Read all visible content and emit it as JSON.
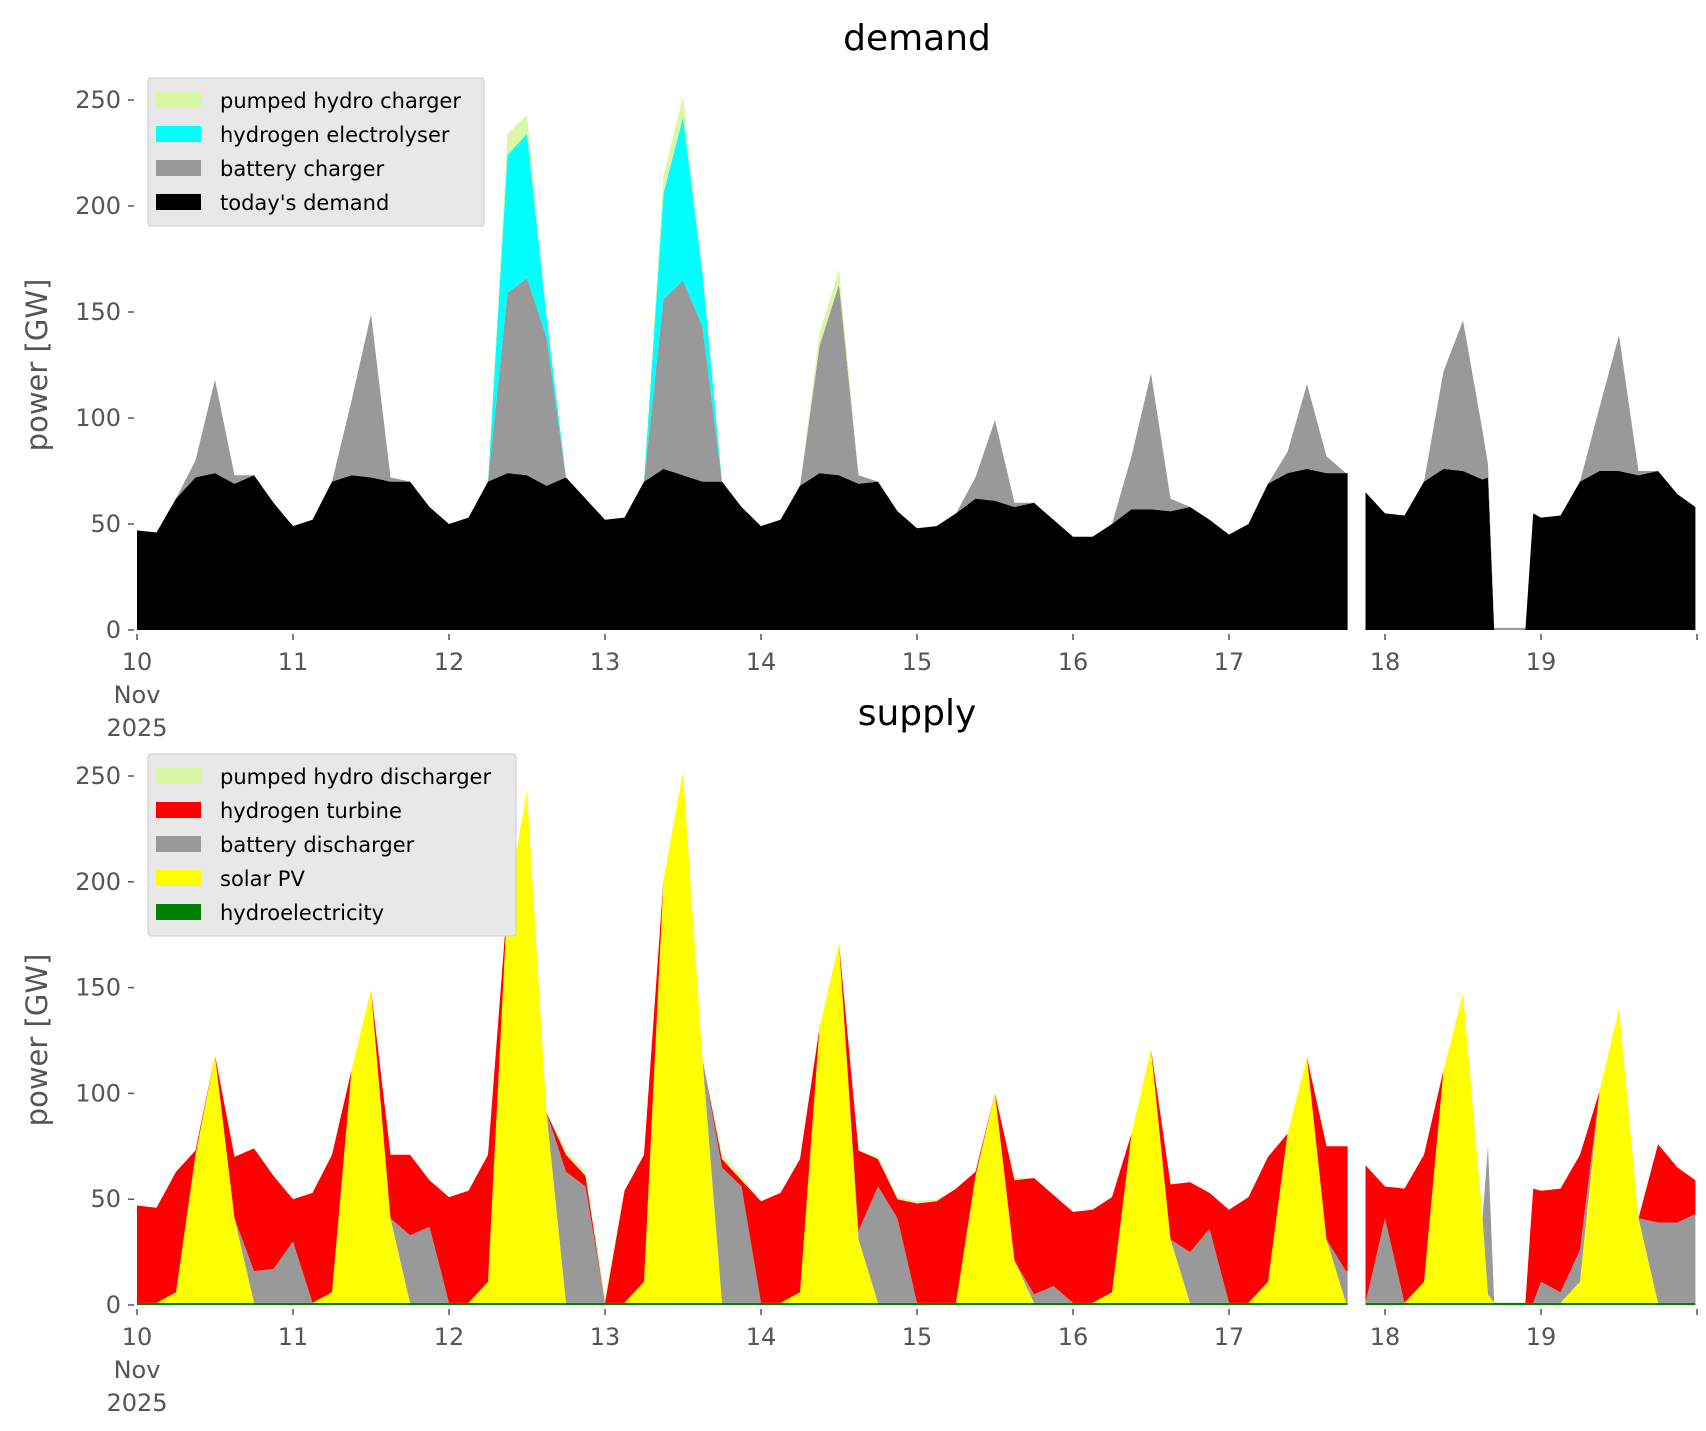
{
  "chart_data": [
    {
      "type": "area",
      "stacked": true,
      "title": "demand",
      "ylabel": "power [GW]",
      "xlabel": "",
      "ylim": [
        0,
        260
      ],
      "xlim": [
        10,
        20
      ],
      "yticks": [
        0,
        50,
        100,
        150,
        200,
        250
      ],
      "xticks": [
        {
          "value": 10,
          "label": [
            "10",
            "Nov",
            "2025"
          ]
        },
        {
          "value": 11,
          "label": [
            "11"
          ]
        },
        {
          "value": 12,
          "label": [
            "12"
          ]
        },
        {
          "value": 13,
          "label": [
            "13"
          ]
        },
        {
          "value": 14,
          "label": [
            "14"
          ]
        },
        {
          "value": 15,
          "label": [
            "15"
          ]
        },
        {
          "value": 16,
          "label": [
            "16"
          ]
        },
        {
          "value": 17,
          "label": [
            "17"
          ]
        },
        {
          "value": 18,
          "label": [
            "18"
          ]
        },
        {
          "value": 19,
          "label": [
            "19"
          ]
        }
      ],
      "grid": false,
      "legend_position": "top-left",
      "legend": [
        {
          "name": "pumped hydro charger",
          "color": "#daf7a6"
        },
        {
          "name": "hydrogen electrolyser",
          "color": "#00ffff"
        },
        {
          "name": "battery charger",
          "color": "#999999"
        },
        {
          "name": "today's demand",
          "color": "#000000"
        }
      ],
      "x_unit": "day of Nov 2025 (3-hourly samples)",
      "x": [
        10.0,
        10.125,
        10.25,
        10.375,
        10.5,
        10.625,
        10.75,
        10.875,
        11.0,
        11.125,
        11.25,
        11.375,
        11.5,
        11.625,
        11.75,
        11.875,
        12.0,
        12.125,
        12.25,
        12.375,
        12.5,
        12.625,
        12.75,
        12.875,
        13.0,
        13.125,
        13.25,
        13.375,
        13.5,
        13.625,
        13.75,
        13.875,
        14.0,
        14.125,
        14.25,
        14.375,
        14.5,
        14.625,
        14.75,
        14.875,
        15.0,
        15.125,
        15.25,
        15.375,
        15.5,
        15.625,
        15.75,
        15.875,
        16.0,
        16.125,
        16.25,
        16.375,
        16.5,
        16.625,
        16.75,
        16.875,
        17.0,
        17.125,
        17.25,
        17.375,
        17.5,
        17.625,
        17.75,
        17.76,
        17.85,
        17.875,
        18.0,
        18.125,
        18.25,
        18.375,
        18.5,
        18.625,
        18.66,
        18.7,
        18.9,
        18.95,
        19.0,
        19.125,
        19.25,
        19.375,
        19.5,
        19.625,
        19.75,
        19.875,
        19.99
      ],
      "series": [
        {
          "name": "today's demand",
          "color": "#000000",
          "values": [
            47,
            46,
            62,
            72,
            74,
            69,
            73,
            60,
            49,
            52,
            70,
            73,
            72,
            70,
            70,
            58,
            50,
            53,
            70,
            74,
            73,
            68,
            72,
            62,
            52,
            53,
            70,
            76,
            73,
            70,
            70,
            58,
            49,
            52,
            68,
            74,
            73,
            69,
            70,
            56,
            48,
            49,
            55,
            62,
            61,
            58,
            60,
            52,
            44,
            44,
            50,
            57,
            57,
            56,
            58,
            52,
            45,
            50,
            69,
            74,
            76,
            74,
            74,
            74,
            null,
            65,
            55,
            54,
            70,
            76,
            75,
            71,
            72,
            0,
            0,
            55,
            53,
            54,
            70,
            75,
            75,
            73,
            75,
            64,
            58
          ]
        },
        {
          "name": "battery charger",
          "color": "#999999",
          "values": [
            0,
            0,
            0,
            8,
            44,
            4,
            0,
            0,
            0,
            0,
            0,
            35,
            77,
            2,
            0,
            0,
            0,
            0,
            0,
            85,
            93,
            70,
            0,
            0,
            0,
            0,
            0,
            80,
            92,
            73,
            0,
            0,
            0,
            0,
            0,
            60,
            90,
            4,
            0,
            0,
            0,
            0,
            0,
            10,
            38,
            2,
            0,
            0,
            0,
            0,
            0,
            25,
            64,
            6,
            0,
            0,
            0,
            0,
            0,
            10,
            40,
            8,
            0,
            0,
            null,
            0,
            0,
            0,
            0,
            46,
            71,
            23,
            6,
            1,
            1,
            0,
            0,
            0,
            0,
            30,
            64,
            2,
            0,
            0,
            0
          ]
        },
        {
          "name": "hydrogen electrolyser",
          "color": "#00ffff",
          "values": [
            0,
            0,
            0,
            0,
            0,
            0,
            0,
            0,
            0,
            0,
            0,
            0,
            0,
            0,
            0,
            0,
            0,
            0,
            0,
            65,
            68,
            10,
            0,
            0,
            0,
            0,
            0,
            50,
            77,
            25,
            0,
            0,
            0,
            0,
            0,
            0,
            0,
            0,
            0,
            0,
            0,
            0,
            0,
            0,
            0,
            0,
            0,
            0,
            0,
            0,
            0,
            0,
            0,
            0,
            0,
            0,
            0,
            0,
            0,
            0,
            0,
            0,
            0,
            0,
            null,
            0,
            0,
            0,
            0,
            0,
            0,
            0,
            0,
            0,
            0,
            0,
            0,
            0,
            0,
            0,
            0,
            0,
            0,
            0,
            0
          ]
        },
        {
          "name": "pumped hydro charger",
          "color": "#daf7a6",
          "values": [
            0,
            0,
            0,
            0,
            0,
            0,
            0,
            0,
            0,
            0,
            0,
            0,
            0,
            0,
            0,
            0,
            0,
            0,
            0,
            10,
            9,
            0,
            0,
            0,
            0,
            0,
            0,
            8,
            10,
            0,
            0,
            0,
            0,
            0,
            0,
            6,
            7,
            0,
            0,
            0,
            0,
            0,
            0,
            0,
            0,
            0,
            0,
            0,
            0,
            0,
            0,
            0,
            0,
            0,
            0,
            0,
            0,
            0,
            0,
            0,
            0,
            0,
            0,
            0,
            null,
            0,
            0,
            0,
            0,
            0,
            0,
            0,
            0,
            0,
            0,
            0,
            0,
            0,
            0,
            0,
            0,
            0,
            0,
            0,
            0
          ]
        }
      ]
    },
    {
      "type": "area",
      "stacked": true,
      "title": "supply",
      "ylabel": "power [GW]",
      "xlabel": "",
      "ylim": [
        0,
        260
      ],
      "xlim": [
        10,
        20
      ],
      "yticks": [
        0,
        50,
        100,
        150,
        200,
        250
      ],
      "xticks": [
        {
          "value": 10,
          "label": [
            "10",
            "Nov",
            "2025"
          ]
        },
        {
          "value": 11,
          "label": [
            "11"
          ]
        },
        {
          "value": 12,
          "label": [
            "12"
          ]
        },
        {
          "value": 13,
          "label": [
            "13"
          ]
        },
        {
          "value": 14,
          "label": [
            "14"
          ]
        },
        {
          "value": 15,
          "label": [
            "15"
          ]
        },
        {
          "value": 16,
          "label": [
            "16"
          ]
        },
        {
          "value": 17,
          "label": [
            "17"
          ]
        },
        {
          "value": 18,
          "label": [
            "18"
          ]
        },
        {
          "value": 19,
          "label": [
            "19"
          ]
        }
      ],
      "grid": false,
      "legend_position": "top-left",
      "legend": [
        {
          "name": "pumped hydro discharger",
          "color": "#daf7a6"
        },
        {
          "name": "hydrogen turbine",
          "color": "#ff0000"
        },
        {
          "name": "battery discharger",
          "color": "#999999"
        },
        {
          "name": "solar PV",
          "color": "#ffff00"
        },
        {
          "name": "hydroelectricity",
          "color": "#008000"
        }
      ],
      "x_unit": "day of Nov 2025 (3-hourly samples)",
      "x": [
        10.0,
        10.125,
        10.25,
        10.375,
        10.5,
        10.625,
        10.75,
        10.875,
        11.0,
        11.125,
        11.25,
        11.375,
        11.5,
        11.625,
        11.75,
        11.875,
        12.0,
        12.125,
        12.25,
        12.375,
        12.5,
        12.625,
        12.75,
        12.875,
        13.0,
        13.125,
        13.25,
        13.375,
        13.5,
        13.625,
        13.75,
        13.875,
        14.0,
        14.125,
        14.25,
        14.375,
        14.5,
        14.625,
        14.75,
        14.875,
        15.0,
        15.125,
        15.25,
        15.375,
        15.5,
        15.625,
        15.75,
        15.875,
        16.0,
        16.125,
        16.25,
        16.375,
        16.5,
        16.625,
        16.75,
        16.875,
        17.0,
        17.125,
        17.25,
        17.375,
        17.5,
        17.625,
        17.75,
        17.76,
        17.85,
        17.875,
        18.0,
        18.125,
        18.25,
        18.375,
        18.5,
        18.625,
        18.66,
        18.7,
        18.9,
        18.95,
        19.0,
        19.125,
        19.25,
        19.375,
        19.5,
        19.625,
        19.75,
        19.875,
        19.99
      ],
      "series": [
        {
          "name": "hydroelectricity",
          "color": "#008000",
          "values": [
            1,
            1,
            1,
            1,
            1,
            1,
            1,
            1,
            1,
            1,
            1,
            1,
            1,
            1,
            1,
            1,
            1,
            1,
            1,
            1,
            1,
            1,
            1,
            1,
            1,
            1,
            1,
            1,
            1,
            1,
            1,
            1,
            1,
            1,
            1,
            1,
            1,
            1,
            1,
            1,
            1,
            1,
            1,
            1,
            1,
            1,
            1,
            1,
            1,
            1,
            1,
            1,
            1,
            1,
            1,
            1,
            1,
            1,
            1,
            1,
            1,
            1,
            1,
            1,
            null,
            1,
            1,
            1,
            1,
            1,
            1,
            1,
            1,
            1,
            1,
            1,
            1,
            1,
            1,
            1,
            1,
            1,
            1,
            1,
            1
          ]
        },
        {
          "name": "solar PV",
          "color": "#ffff00",
          "values": [
            0,
            0,
            5,
            70,
            117,
            40,
            0,
            0,
            0,
            0,
            5,
            110,
            148,
            40,
            0,
            0,
            0,
            0,
            10,
            190,
            242,
            90,
            0,
            0,
            0,
            0,
            10,
            200,
            251,
            115,
            0,
            0,
            0,
            0,
            5,
            130,
            170,
            30,
            0,
            0,
            0,
            0,
            0,
            60,
            99,
            20,
            0,
            0,
            0,
            0,
            5,
            80,
            120,
            30,
            0,
            0,
            0,
            0,
            10,
            80,
            116,
            30,
            0,
            0,
            null,
            0,
            0,
            0,
            10,
            110,
            146,
            40,
            4,
            0,
            0,
            0,
            0,
            0,
            10,
            100,
            139,
            40,
            0,
            0,
            0
          ]
        },
        {
          "name": "battery discharger",
          "color": "#999999",
          "values": [
            0,
            0,
            0,
            0,
            0,
            0,
            15,
            16,
            29,
            0,
            0,
            0,
            0,
            0,
            32,
            36,
            0,
            0,
            0,
            0,
            0,
            0,
            62,
            55,
            0,
            0,
            0,
            0,
            0,
            0,
            64,
            55,
            0,
            0,
            0,
            0,
            0,
            4,
            55,
            40,
            0,
            0,
            0,
            0,
            0,
            0,
            4,
            8,
            0,
            0,
            0,
            0,
            0,
            0,
            24,
            35,
            0,
            0,
            0,
            0,
            0,
            0,
            15,
            15,
            null,
            0,
            40,
            0,
            0,
            0,
            0,
            0,
            70,
            0,
            0,
            0,
            10,
            5,
            15,
            0,
            0,
            0,
            38,
            38,
            42
          ]
        },
        {
          "name": "hydrogen turbine",
          "color": "#ff0000",
          "values": [
            46,
            45,
            57,
            2,
            0,
            29,
            58,
            44,
            20,
            52,
            65,
            0,
            0,
            30,
            38,
            22,
            50,
            53,
            60,
            0,
            0,
            0,
            8,
            5,
            0,
            53,
            60,
            0,
            0,
            0,
            4,
            3,
            48,
            52,
            63,
            0,
            0,
            38,
            13,
            9,
            47,
            48,
            54,
            2,
            0,
            38,
            55,
            43,
            43,
            44,
            45,
            0,
            0,
            26,
            33,
            17,
            44,
            50,
            59,
            0,
            0,
            44,
            59,
            59,
            null,
            65,
            15,
            54,
            60,
            0,
            0,
            0,
            0,
            0,
            0,
            54,
            43,
            49,
            45,
            0,
            0,
            0,
            37,
            26,
            16
          ]
        },
        {
          "name": "pumped hydro discharger",
          "color": "#daf7a6",
          "values": [
            0,
            0,
            0,
            0,
            0,
            0,
            0,
            0,
            0,
            0,
            0,
            0,
            0,
            0,
            0,
            0,
            0,
            0,
            0,
            0,
            0,
            0,
            2,
            2,
            3,
            0,
            0,
            0,
            0,
            0,
            2,
            2,
            0,
            0,
            0,
            0,
            0,
            0,
            1,
            1,
            1,
            1,
            0,
            0,
            0,
            1,
            0,
            0,
            0,
            0,
            0,
            0,
            0,
            0,
            0,
            0,
            0,
            0,
            0,
            0,
            0,
            0,
            0,
            0,
            null,
            0,
            0,
            0,
            0,
            0,
            0,
            0,
            0,
            0,
            0,
            0,
            0,
            0,
            0,
            0,
            0,
            0,
            0,
            0,
            0
          ]
        }
      ]
    }
  ]
}
